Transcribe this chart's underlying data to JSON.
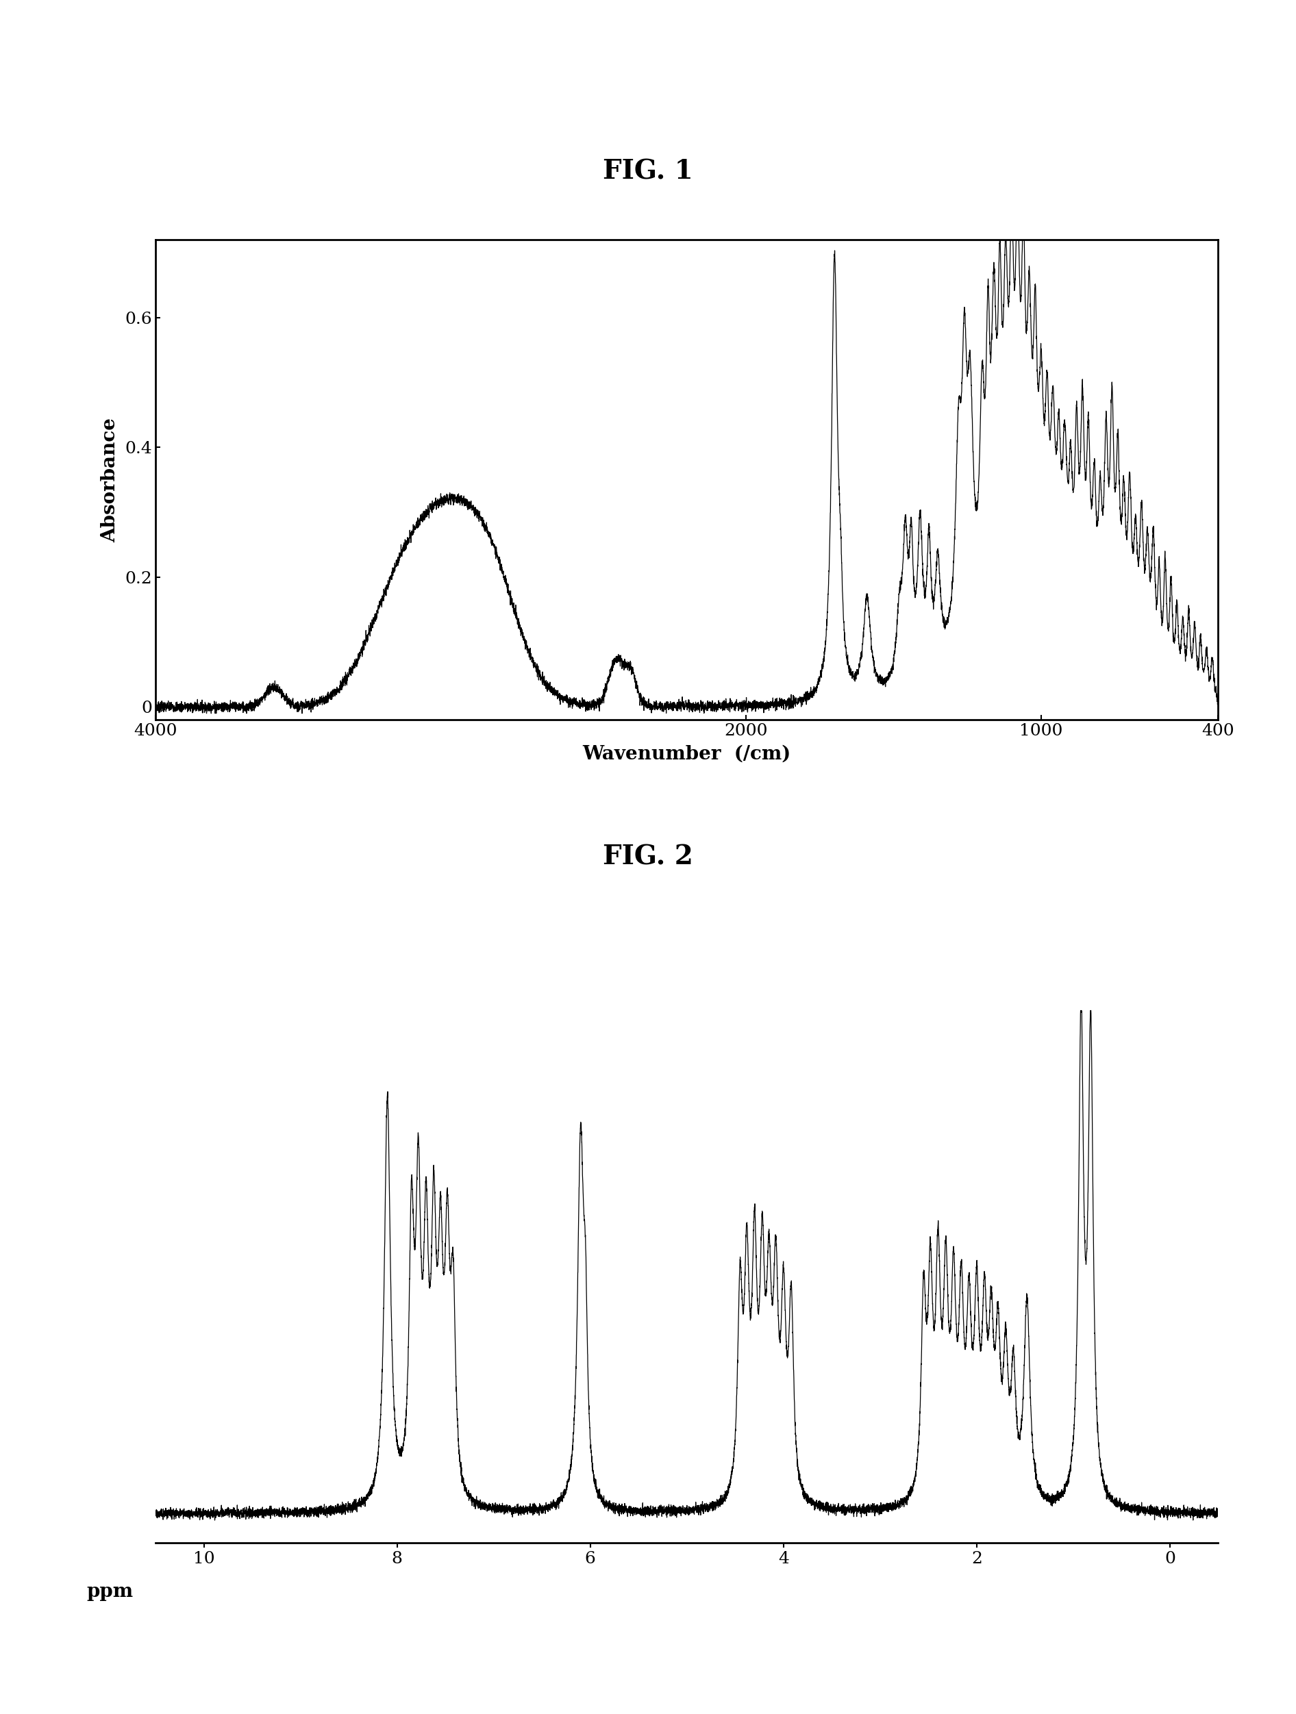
{
  "fig1_title": "FIG. 1",
  "fig2_title": "FIG. 2",
  "fig1_xlabel": "Wavenumber  (/cm)",
  "fig1_ylabel": "Absorbance",
  "fig2_xlabel": "ppm",
  "fig1_xlim": [
    4000,
    400
  ],
  "fig1_ylim": [
    -0.02,
    0.72
  ],
  "fig1_xticks": [
    4000,
    2000,
    1000,
    400
  ],
  "fig1_yticks": [
    0,
    0.2,
    0.4,
    0.6
  ],
  "fig2_xlim": [
    10.5,
    -0.5
  ],
  "fig2_xticks": [
    10,
    8,
    6,
    4,
    2,
    0
  ],
  "background_color": "#ffffff",
  "line_color": "#000000",
  "title_fontsize": 28,
  "label_fontsize": 20,
  "tick_fontsize": 18
}
